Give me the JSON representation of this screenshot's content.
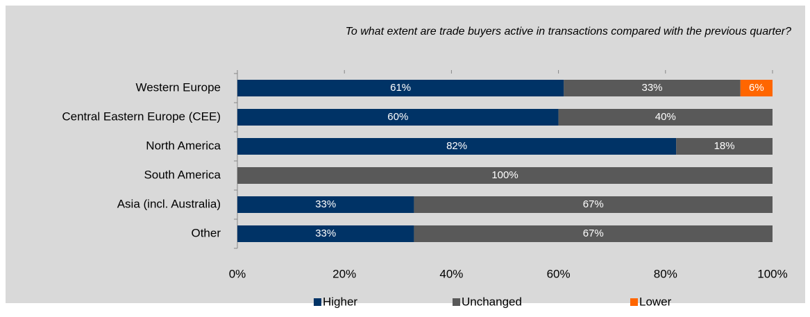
{
  "chart_data": {
    "type": "stacked-bar-horizontal",
    "title": "To what extent are trade buyers active in transactions compared with the previous quarter?",
    "categories": [
      "Western Europe",
      "Central Eastern Europe (CEE)",
      "North America",
      "South America",
      "Asia (incl. Australia)",
      "Other"
    ],
    "series": [
      {
        "name": "Higher",
        "color": "#003366",
        "values": [
          61,
          60,
          82,
          0,
          33,
          33
        ],
        "value_labels": [
          "61%",
          "60%",
          "82%",
          null,
          "33%",
          "33%"
        ]
      },
      {
        "name": "Unchanged",
        "color": "#595959",
        "values": [
          33,
          40,
          18,
          100,
          67,
          67
        ],
        "value_labels": [
          "33%",
          "40%",
          "18%",
          "100%",
          "67%",
          "67%"
        ]
      },
      {
        "name": "Lower",
        "color": "#ff6600",
        "values": [
          6,
          0,
          0,
          0,
          0,
          0
        ],
        "value_labels": [
          "6%",
          null,
          null,
          null,
          null,
          null
        ]
      }
    ],
    "xlim": [
      0,
      100
    ],
    "xticks": [
      {
        "value": 0,
        "label": "0%"
      },
      {
        "value": 20,
        "label": "20%"
      },
      {
        "value": 40,
        "label": "40%"
      },
      {
        "value": 60,
        "label": "60%"
      },
      {
        "value": 80,
        "label": "80%"
      },
      {
        "value": 100,
        "label": "100%"
      }
    ],
    "legend": "bottom"
  }
}
